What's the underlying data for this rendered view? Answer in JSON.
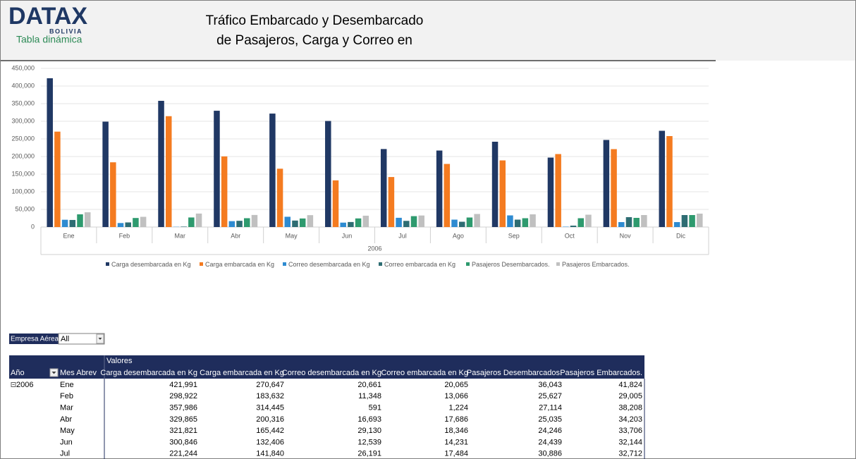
{
  "header": {
    "logo": "DATAX",
    "logo_sub": "BOLIVIA",
    "sheet_label": "Tabla dinámica",
    "title_lines": [
      "Tráfico Embarcado y Desembarcado",
      "de Pasajeros, Carga y Correo en"
    ]
  },
  "chart_data": {
    "type": "bar",
    "xlabel": "2006",
    "categories": [
      "Ene",
      "Feb",
      "Mar",
      "Abr",
      "May",
      "Jun",
      "Jul",
      "Ago",
      "Sep",
      "Oct",
      "Nov",
      "Dic"
    ],
    "series": [
      {
        "name": "Carga desembarcada en Kg",
        "color": "#203864",
        "values": [
          421991,
          298922,
          357986,
          329865,
          321821,
          300846,
          221244,
          217000,
          242000,
          197000,
          247000,
          273000
        ]
      },
      {
        "name": "Carga embarcada en Kg",
        "color": "#f47b20",
        "values": [
          270647,
          183632,
          314445,
          200316,
          165442,
          132406,
          141840,
          179000,
          189000,
          207000,
          221000,
          258000
        ]
      },
      {
        "name": "Correo desembarcada en Kg",
        "color": "#2e8bd1",
        "values": [
          20661,
          11348,
          591,
          16693,
          29130,
          12539,
          26191,
          21000,
          33000,
          1000,
          14000,
          14000
        ]
      },
      {
        "name": "Correo embarcada en Kg",
        "color": "#2e6d73",
        "values": [
          20065,
          13066,
          1224,
          17686,
          18346,
          14231,
          17484,
          15000,
          21000,
          4000,
          28000,
          34000
        ]
      },
      {
        "name": "Pasajeros Desembarcados.",
        "color": "#2e9a6e",
        "values": [
          36043,
          25627,
          27114,
          25035,
          24246,
          24439,
          30886,
          27000,
          25000,
          25000,
          26000,
          34000
        ]
      },
      {
        "name": "Pasajeros Embarcados.",
        "color": "#c0c0c0",
        "values": [
          41824,
          29005,
          38208,
          34203,
          33706,
          32144,
          32712,
          37000,
          36000,
          35000,
          34000,
          38000
        ]
      }
    ],
    "ylim": [
      0,
      450000
    ],
    "yticks": [
      0,
      {
        "value": 50000,
        "label": "50,000"
      },
      {
        "value": 100000,
        "label": "100,000"
      },
      {
        "value": 150000,
        "label": "150,000"
      },
      {
        "value": 200000,
        "label": "200,000"
      },
      {
        "value": 250000,
        "label": "250,000"
      },
      {
        "value": 300000,
        "label": "300,000"
      },
      {
        "value": 350000,
        "label": "350,000"
      },
      {
        "value": 400000,
        "label": "400,000"
      },
      {
        "value": 450000,
        "label": "450,000"
      }
    ],
    "grid": true
  },
  "pivot": {
    "filter_label": "Empresa Aérea",
    "filter_value": "All",
    "values_header": "Valores",
    "row_headers": [
      "Año",
      "Mes Abrev"
    ],
    "columns": [
      "Carga desembarcada en Kg",
      "Carga embarcada en Kg",
      "Correo desembarcada en Kg",
      "Correo embarcada en Kg",
      "Pasajeros Desembarcados.",
      "Pasajeros Embarcados."
    ],
    "rows": [
      {
        "year": "2006",
        "month": "Ene",
        "cells": [
          "421,991",
          "270,647",
          "20,661",
          "20,065",
          "36,043",
          "41,824"
        ]
      },
      {
        "month": "Feb",
        "cells": [
          "298,922",
          "183,632",
          "11,348",
          "13,066",
          "25,627",
          "29,005"
        ]
      },
      {
        "month": "Mar",
        "cells": [
          "357,986",
          "314,445",
          "591",
          "1,224",
          "27,114",
          "38,208"
        ]
      },
      {
        "month": "Abr",
        "cells": [
          "329,865",
          "200,316",
          "16,693",
          "17,686",
          "25,035",
          "34,203"
        ]
      },
      {
        "month": "May",
        "cells": [
          "321,821",
          "165,442",
          "29,130",
          "18,346",
          "24,246",
          "33,706"
        ]
      },
      {
        "month": "Jun",
        "cells": [
          "300,846",
          "132,406",
          "12,539",
          "14,231",
          "24,439",
          "32,144"
        ]
      },
      {
        "month": "Jul",
        "cells": [
          "221,244",
          "141,840",
          "26,191",
          "17,484",
          "30,886",
          "32,712"
        ]
      }
    ]
  }
}
